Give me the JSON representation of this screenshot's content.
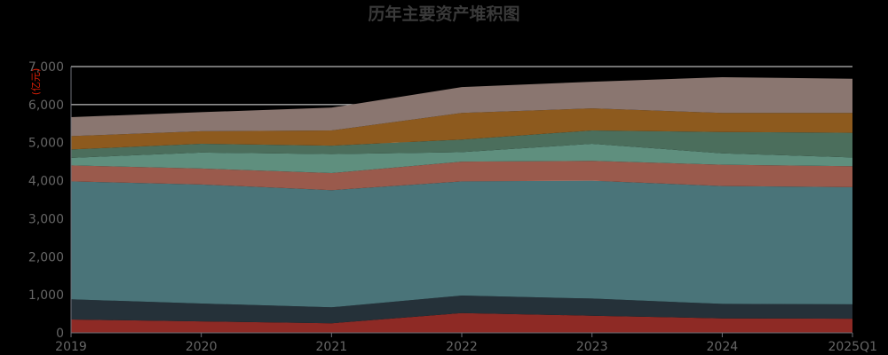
{
  "chart_data": {
    "type": "area",
    "stacked": true,
    "title": "历年主要资产堆积图",
    "unit_label": "(亿元)",
    "categories": [
      "2019",
      "2020",
      "2021",
      "2022",
      "2023",
      "2024",
      "2025Q1"
    ],
    "ylim": [
      0,
      7000
    ],
    "yticks": [
      "0",
      "1,000",
      "2,000",
      "3,000",
      "4,000",
      "5,000",
      "6,000",
      "7,000"
    ],
    "grid": true,
    "legend": "none",
    "series": [
      {
        "color": "#8e2a25",
        "values": [
          350,
          300,
          250,
          520,
          450,
          380,
          370
        ]
      },
      {
        "color": "#253139",
        "values": [
          530,
          470,
          420,
          460,
          450,
          380,
          380
        ]
      },
      {
        "color": "#4a7479",
        "values": [
          3100,
          3130,
          3080,
          3000,
          3100,
          3100,
          3080
        ]
      },
      {
        "color": "#9a5a4c",
        "values": [
          420,
          420,
          450,
          520,
          520,
          560,
          550
        ]
      },
      {
        "color": "#5f8f7e",
        "values": [
          200,
          420,
          500,
          250,
          450,
          300,
          230
        ]
      },
      {
        "color": "#4b6e5c",
        "values": [
          220,
          230,
          220,
          330,
          350,
          560,
          650
        ]
      },
      {
        "color": "#8d5a1e",
        "values": [
          350,
          330,
          400,
          700,
          580,
          500,
          520
        ]
      },
      {
        "color": "#8a7670",
        "values": [
          500,
          500,
          600,
          680,
          700,
          940,
          900
        ]
      }
    ]
  }
}
